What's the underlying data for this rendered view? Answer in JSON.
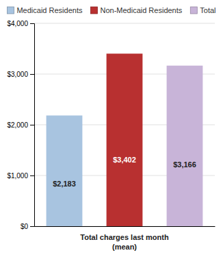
{
  "chart_data": {
    "type": "bar",
    "x_label": "Total charges last month\n(mean)",
    "categories": [
      "Medicaid Residents",
      "Non-Medicaid Residents",
      "Total"
    ],
    "values": [
      2183,
      3402,
      3166
    ],
    "value_labels": [
      "$2,183",
      "$3,402",
      "$3,166"
    ],
    "colors": [
      "#a8c4e0",
      "#b83030",
      "#c8b4d8"
    ],
    "ylim": [
      0,
      4000
    ],
    "yticks": [
      {
        "value": 0,
        "label": "$0"
      },
      {
        "value": 1000,
        "label": "$1,000"
      },
      {
        "value": 2000,
        "label": "$2,000"
      },
      {
        "value": 3000,
        "label": "$3,000"
      },
      {
        "value": 4000,
        "label": "$4,000"
      }
    ],
    "grid": true,
    "legend": "top",
    "data_labels": true,
    "tick_labels": "y"
  }
}
